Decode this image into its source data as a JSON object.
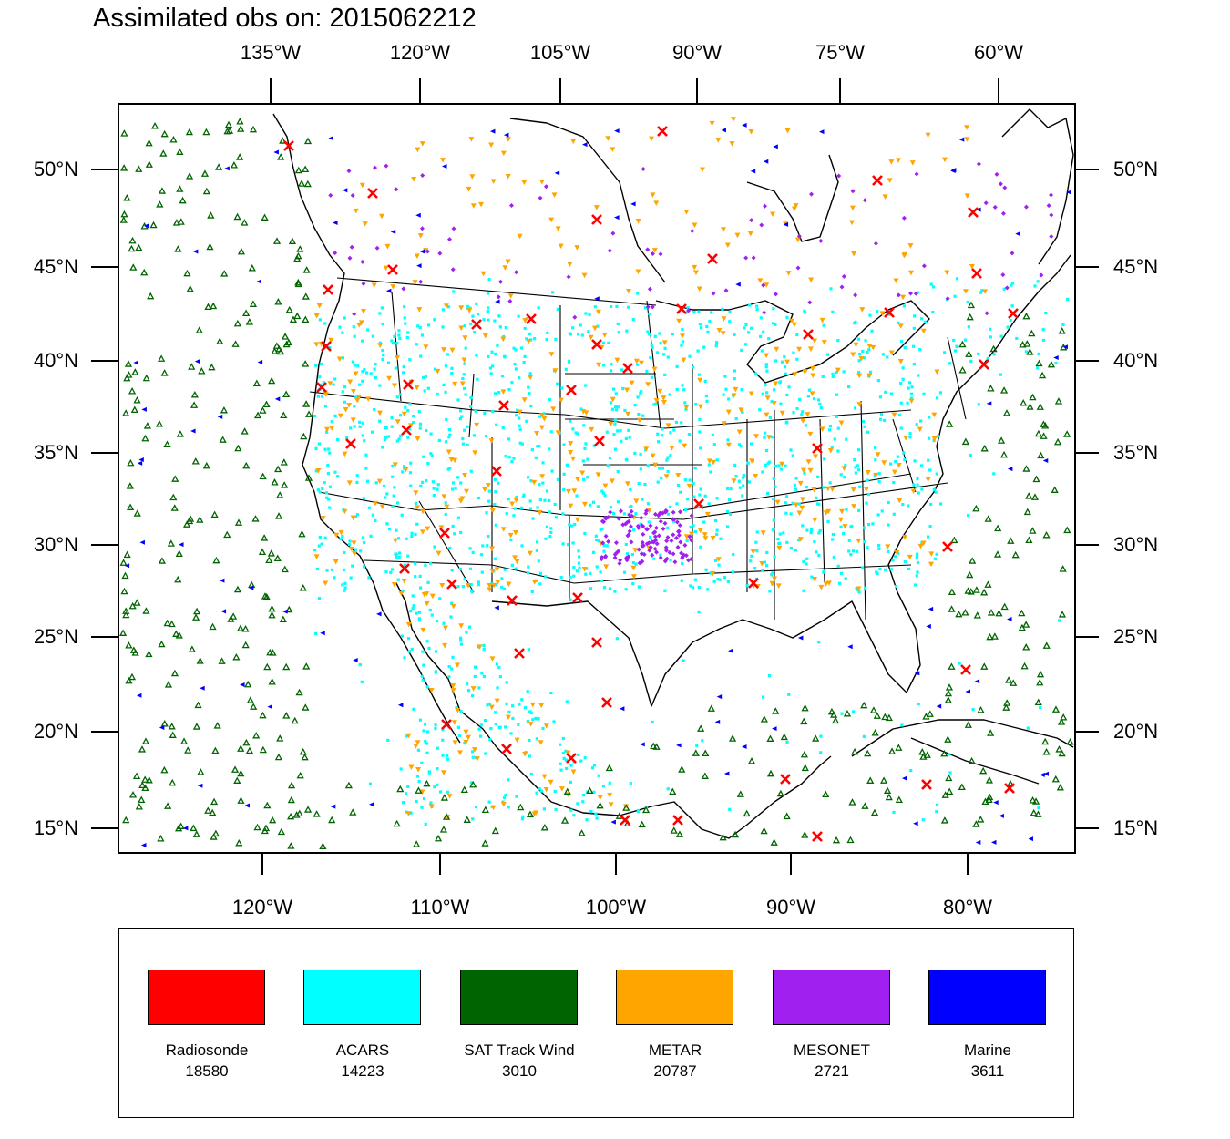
{
  "title": "Assimilated obs on: 2015062212",
  "axes": {
    "top_lon_labels": [
      "135°W",
      "120°W",
      "105°W",
      "90°W",
      "75°W",
      "60°W"
    ],
    "bottom_lon_labels": [
      "120°W",
      "110°W",
      "100°W",
      "90°W",
      "80°W"
    ],
    "lat_labels": [
      "50°N",
      "45°N",
      "40°N",
      "35°N",
      "30°N",
      "25°N",
      "20°N",
      "15°N"
    ]
  },
  "legend": [
    {
      "name": "Radiosonde",
      "count": "18580",
      "color": "#ff0000"
    },
    {
      "name": "ACARS",
      "count": "14223",
      "color": "#00ffff"
    },
    {
      "name": "SAT Track Wind",
      "count": "3010",
      "color": "#006400"
    },
    {
      "name": "METAR",
      "count": "20787",
      "color": "#ffa500"
    },
    {
      "name": "MESONET",
      "count": "2721",
      "color": "#a020f0"
    },
    {
      "name": "Marine",
      "count": "3611",
      "color": "#0000ff"
    }
  ]
}
